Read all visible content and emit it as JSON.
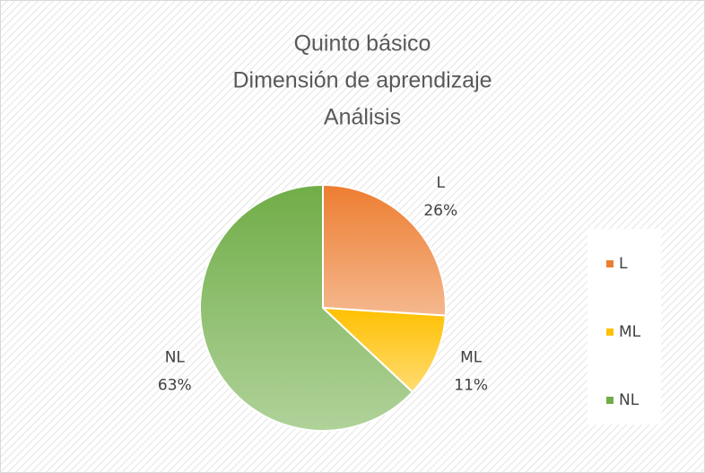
{
  "chart_data": {
    "type": "pie",
    "title": [
      "Quinto básico",
      "Dimensión de aprendizaje",
      "Análisis"
    ],
    "categories": [
      "L",
      "ML",
      "NL"
    ],
    "values": [
      26,
      11,
      63
    ],
    "value_labels": [
      "26%",
      "11%",
      "63%"
    ],
    "colors": [
      "#ed7d31",
      "#ffc000",
      "#70ad47"
    ],
    "legend": "right"
  }
}
